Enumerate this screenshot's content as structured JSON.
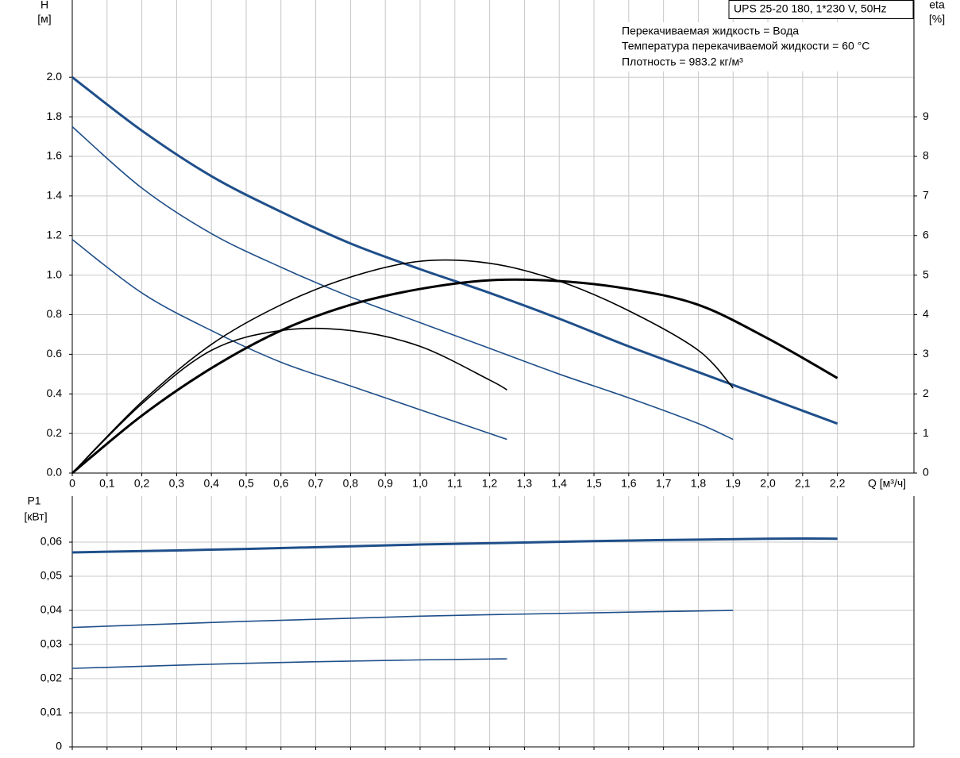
{
  "chart_data": [
    {
      "type": "line",
      "title": "UPS 25-20 180, 1*230 V, 50Hz",
      "annotations": [
        "Перекачиваемая жидкость = Вода",
        "Температура перекачиваемой жидкости = 60 °C",
        "Плотность = 983.2 кг/м³"
      ],
      "ylabel": "H",
      "yunit": "[м]",
      "y2label": "eta",
      "y2unit": "[%]",
      "xlabel": "Q [м³/ч]",
      "xlim": [
        0,
        2.42
      ],
      "xticks": [
        0,
        {
          "value": 0.1,
          "label": "0,1"
        },
        {
          "value": 0.2,
          "label": "0,2"
        },
        {
          "value": 0.3,
          "label": "0,3"
        },
        {
          "value": 0.4,
          "label": "0,4"
        },
        {
          "value": 0.5,
          "label": "0,5"
        },
        {
          "value": 0.6,
          "label": "0,6"
        },
        {
          "value": 0.7,
          "label": "0,7"
        },
        {
          "value": 0.8,
          "label": "0,8"
        },
        {
          "value": 0.9,
          "label": "0,9"
        },
        {
          "value": 1.0,
          "label": "1,0"
        },
        {
          "value": 1.1,
          "label": "1,1"
        },
        {
          "value": 1.2,
          "label": "1,2"
        },
        {
          "value": 1.3,
          "label": "1,3"
        },
        {
          "value": 1.4,
          "label": "1,4"
        },
        {
          "value": 1.5,
          "label": "1,5"
        },
        {
          "value": 1.6,
          "label": "1,6"
        },
        {
          "value": 1.7,
          "label": "1,7"
        },
        {
          "value": 1.8,
          "label": "1,8"
        },
        {
          "value": 1.9,
          "label": "1,9"
        },
        {
          "value": 2.0,
          "label": "2,0"
        },
        {
          "value": 2.1,
          "label": "2,1"
        },
        {
          "value": 2.2,
          "label": "2,2"
        }
      ],
      "ylim": [
        0,
        2.39
      ],
      "yticks": [
        {
          "value": 0,
          "label": "0.0"
        },
        0.2,
        0.4,
        0.6,
        0.8,
        {
          "value": 1,
          "label": "1.0"
        },
        1.2,
        1.4,
        1.6,
        1.8,
        {
          "value": 2,
          "label": "2.0"
        }
      ],
      "y2lim": [
        0,
        11.95
      ],
      "y2ticks": [
        0,
        1,
        2,
        3,
        4,
        5,
        6,
        7,
        8,
        9
      ],
      "grid": true,
      "series": [
        {
          "color": "#1f4f8a",
          "x": [
            0,
            0.2,
            0.4,
            0.6,
            0.8,
            1.0,
            1.2,
            1.4,
            1.6,
            1.8,
            2.0,
            2.2
          ],
          "values": [
            2.0,
            1.73,
            1.5,
            1.32,
            1.16,
            1.03,
            0.91,
            0.78,
            0.64,
            0.51,
            0.38,
            0.25
          ]
        },
        {
          "color": "#1f4f8a",
          "x": [
            0,
            0.2,
            0.4,
            0.6,
            0.8,
            1.0,
            1.2,
            1.4,
            1.6,
            1.8,
            1.9
          ],
          "values": [
            1.75,
            1.44,
            1.21,
            1.04,
            0.89,
            0.76,
            0.63,
            0.5,
            0.38,
            0.25,
            0.17
          ]
        },
        {
          "color": "#1f4f8a",
          "x": [
            0,
            0.2,
            0.4,
            0.6,
            0.8,
            1.0,
            1.2,
            1.25
          ],
          "values": [
            1.18,
            0.91,
            0.72,
            0.56,
            0.44,
            0.32,
            0.2,
            0.17
          ]
        },
        {
          "color": "#000000",
          "axis": "y2",
          "x": [
            0,
            0.2,
            0.4,
            0.6,
            0.8,
            1.0,
            1.2,
            1.4,
            1.6,
            1.8,
            2.0,
            2.2
          ],
          "values": [
            0,
            1.45,
            2.65,
            3.6,
            4.25,
            4.65,
            4.87,
            4.85,
            4.65,
            4.25,
            3.4,
            2.4
          ]
        },
        {
          "color": "#000000",
          "axis": "y2",
          "x": [
            0,
            0.2,
            0.4,
            0.6,
            0.8,
            1.0,
            1.2,
            1.4,
            1.6,
            1.8,
            1.9
          ],
          "values": [
            0,
            1.8,
            3.25,
            4.25,
            4.95,
            5.35,
            5.3,
            4.85,
            4.1,
            3.1,
            2.15
          ]
        },
        {
          "color": "#000000",
          "axis": "y2",
          "x": [
            0,
            0.2,
            0.4,
            0.6,
            0.8,
            1.0,
            1.2,
            1.25
          ],
          "values": [
            0,
            1.75,
            3.1,
            3.6,
            3.6,
            3.2,
            2.35,
            2.1
          ]
        }
      ]
    },
    {
      "type": "line",
      "ylabel": "P1",
      "yunit": "[кВт]",
      "xlim": [
        0,
        2.42
      ],
      "xticks": [
        0,
        0.1,
        0.2,
        0.3,
        0.4,
        0.5,
        0.6,
        0.7,
        0.8,
        0.9,
        1.0,
        1.1,
        1.2,
        1.3,
        1.4,
        1.5,
        1.6,
        1.7,
        1.8,
        1.9,
        2.0,
        2.1,
        2.2
      ],
      "ylim": [
        0,
        0.0735
      ],
      "yticks": [
        0,
        {
          "value": 0.01,
          "label": "0,01"
        },
        {
          "value": 0.02,
          "label": "0,02"
        },
        {
          "value": 0.03,
          "label": "0,03"
        },
        {
          "value": 0.04,
          "label": "0,04"
        },
        {
          "value": 0.05,
          "label": "0,05"
        },
        {
          "value": 0.06,
          "label": "0,06"
        }
      ],
      "grid": true,
      "series": [
        {
          "color": "#1f4f8a",
          "x": [
            0,
            0.5,
            1.0,
            1.5,
            2.0,
            2.2
          ],
          "values": [
            0.057,
            0.058,
            0.0593,
            0.0603,
            0.061,
            0.061
          ]
        },
        {
          "color": "#1f4f8a",
          "x": [
            0,
            0.5,
            1.0,
            1.5,
            1.9
          ],
          "values": [
            0.035,
            0.0368,
            0.0383,
            0.0393,
            0.04
          ]
        },
        {
          "color": "#1f4f8a",
          "x": [
            0,
            0.5,
            1.0,
            1.25
          ],
          "values": [
            0.023,
            0.0245,
            0.0255,
            0.0258
          ]
        }
      ]
    }
  ]
}
